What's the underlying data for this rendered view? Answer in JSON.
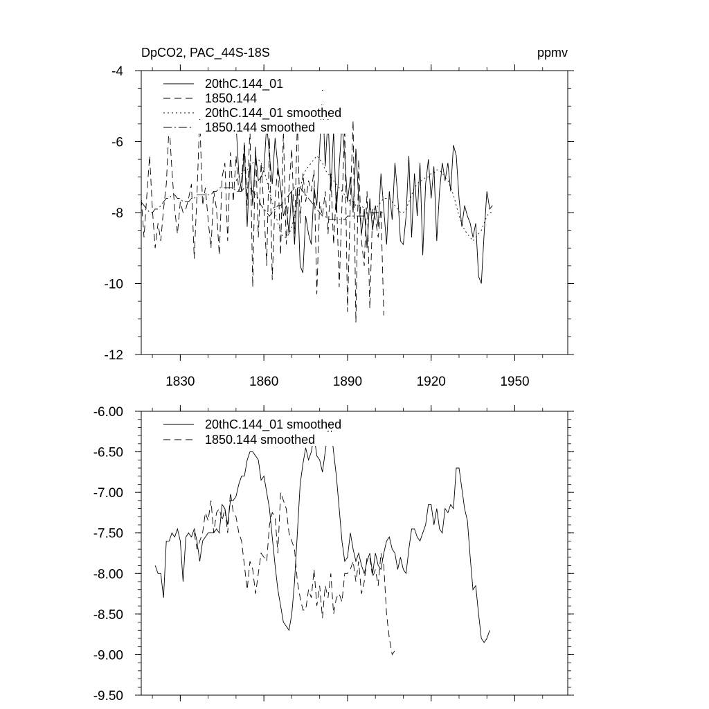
{
  "chart_data": [
    {
      "type": "line",
      "title": "DpCO2, PAC_44S-18S",
      "units_label": "ppmv",
      "xlabel": "",
      "ylabel": "",
      "xlim": [
        1816,
        1969
      ],
      "ylim": [
        -12,
        -4
      ],
      "x_ticks": [
        1830,
        1860,
        1890,
        1920,
        1950
      ],
      "y_ticks": [
        -4,
        -6,
        -8,
        -10,
        -12
      ],
      "y_tick_labels": [
        "-4",
        "-6",
        "-8",
        "-10",
        "-12"
      ],
      "legend_position": "top-left",
      "series": [
        {
          "name": "20thC.144_01",
          "style": "solid",
          "x_start": 1850,
          "values": [
            -5.5,
            -6.9,
            -7.4,
            -6.2,
            -8.4,
            -6.6,
            -7.8,
            -6.3,
            -7.1,
            -7.0,
            -6.8,
            -5.5,
            -6.4,
            -7.2,
            -5.9,
            -6.7,
            -7.3,
            -8.1,
            -7.8,
            -8.6,
            -7.4,
            -8.9,
            -7.3,
            -9.5,
            -9.7,
            -8.1,
            -8.6,
            -8.9,
            -7.3,
            -7.8,
            -6.2,
            -4.5,
            -6.7,
            -5.3,
            -7.4,
            -5.7,
            -8.0,
            -6.7,
            -5.5,
            -6.4,
            -7.7,
            -7.0,
            -8.0,
            -6.2,
            -7.6,
            -8.6,
            -7.9,
            -9.0,
            -7.6,
            -8.5,
            -7.8,
            -8.4,
            -6.9,
            -7.9,
            -8.9,
            -7.4,
            -8.2,
            -6.6,
            -7.5,
            -8.8,
            -8.9,
            -8.1,
            -6.4,
            -8.7,
            -6.9,
            -8.1,
            -6.6,
            -9.2,
            -7.2,
            -6.5,
            -7.6,
            -6.7,
            -8.8,
            -7.4,
            -6.6,
            -7.1,
            -6.6,
            -7.4,
            -6.1,
            -6.4,
            -7.6,
            -8.4,
            -7.8,
            -8.1,
            -8.3,
            -8.7,
            -8.3,
            -9.8,
            -10.0,
            -8.6,
            -7.4,
            -7.9,
            -7.8
          ]
        },
        {
          "name": "1850.144",
          "style": "dashed",
          "x_start": 1816,
          "values": [
            -7.6,
            -8.7,
            -7.5,
            -6.4,
            -7.9,
            -9.0,
            -8.3,
            -8.8,
            -7.9,
            -7.2,
            -5.5,
            -6.8,
            -7.9,
            -8.6,
            -7.7,
            -8.0,
            -7.9,
            -7.6,
            -7.2,
            -9.3,
            -7.5,
            -5.3,
            -7.8,
            -7.3,
            -8.2,
            -9.0,
            -7.4,
            -7.9,
            -9.2,
            -7.0,
            -6.6,
            -8.8,
            -6.3,
            -7.7,
            -6.4,
            -7.4,
            -7.1,
            -6.0,
            -7.8,
            -5.6,
            -10.1,
            -6.1,
            -8.7,
            -6.6,
            -7.9,
            -9.5,
            -5.9,
            -9.9,
            -7.6,
            -6.7,
            -9.2,
            -5.7,
            -8.9,
            -7.3,
            -6.2,
            -8.6,
            -5.4,
            -8.3,
            -6.9,
            -7.7,
            -7.1,
            -7.4,
            -6.8,
            -10.3,
            -7.7,
            -8.1,
            -7.4,
            -8.6,
            -6.9,
            -8.9,
            -7.4,
            -10.1,
            -7.8,
            -5.6,
            -10.8,
            -7.7,
            -5.4,
            -11.1,
            -6.5,
            -8.8,
            -9.5,
            -7.4,
            -10.7,
            -7.9,
            -8.2,
            -8.7,
            -7.9,
            -10.9
          ]
        },
        {
          "name": "20thC.144_01 smoothed",
          "style": "dotted",
          "x_start": 1850,
          "values": [
            -7.1,
            -7.0,
            -6.9,
            -6.8,
            -6.8,
            -6.7,
            -6.6,
            -6.5,
            -6.5,
            -6.6,
            -6.8,
            -7.1,
            -7.4,
            -7.7,
            -8.0,
            -8.3,
            -8.5,
            -8.7,
            -8.7,
            -8.6,
            -8.4,
            -8.1,
            -7.7,
            -7.3,
            -7.0,
            -6.8,
            -6.7,
            -6.6,
            -6.5,
            -6.4,
            -6.5,
            -6.6,
            -6.8,
            -6.9,
            -7.0,
            -7.1,
            -7.2,
            -7.3,
            -7.4,
            -7.5,
            -7.6,
            -7.7,
            -7.7,
            -7.8,
            -7.8,
            -7.8,
            -7.9,
            -7.9,
            -7.9,
            -7.9,
            -7.9,
            -7.8,
            -7.7,
            -7.6,
            -7.6,
            -7.6,
            -7.7,
            -7.8,
            -7.9,
            -8.0,
            -8.0,
            -7.9,
            -7.7,
            -7.5,
            -7.3,
            -7.2,
            -7.1,
            -7.1,
            -7.0,
            -7.0,
            -6.9,
            -6.9,
            -6.8,
            -6.8,
            -6.9,
            -7.0,
            -7.1,
            -7.3,
            -7.5,
            -7.8,
            -8.1,
            -8.3,
            -8.5,
            -8.6,
            -8.7,
            -8.8,
            -8.7,
            -8.6,
            -8.5,
            -8.3,
            -8.1,
            -8.0,
            -8.0
          ]
        },
        {
          "name": "1850.144 smoothed",
          "style": "dashdot",
          "x_start": 1816,
          "values": [
            -7.7,
            -7.8,
            -7.9,
            -8.0,
            -8.0,
            -7.9,
            -7.9,
            -7.8,
            -7.7,
            -7.6,
            -7.6,
            -7.5,
            -7.5,
            -7.6,
            -7.6,
            -7.7,
            -7.7,
            -7.7,
            -7.6,
            -7.6,
            -7.5,
            -7.5,
            -7.5,
            -7.5,
            -7.5,
            -7.5,
            -7.4,
            -7.4,
            -7.3,
            -7.3,
            -7.3,
            -7.3,
            -7.3,
            -7.3,
            -7.4,
            -7.4,
            -7.4,
            -7.3,
            -7.3,
            -7.3,
            -7.4,
            -7.5,
            -7.6,
            -7.8,
            -7.9,
            -8.0,
            -8.1,
            -8.0,
            -7.9,
            -7.8,
            -7.8,
            -7.7,
            -7.6,
            -7.5,
            -7.4,
            -7.3,
            -7.3,
            -7.3,
            -7.4,
            -7.5,
            -7.6,
            -7.7,
            -7.8,
            -7.9,
            -8.0,
            -8.1,
            -8.1,
            -8.2,
            -8.2,
            -8.2,
            -8.2,
            -8.2,
            -8.2,
            -8.2,
            -8.1,
            -8.1,
            -8.1,
            -8.1,
            -8.1,
            -8.1,
            -8.1,
            -8.0,
            -8.0,
            -8.0,
            -8.0,
            -8.0,
            -8.0,
            -8.0
          ]
        }
      ]
    },
    {
      "type": "line",
      "title": "",
      "xlabel": "",
      "ylabel": "",
      "xlim": [
        1816,
        1969
      ],
      "ylim": [
        -9.5,
        -6.0
      ],
      "x_ticks": [
        1830,
        1860,
        1890,
        1920,
        1950
      ],
      "y_ticks": [
        -6.0,
        -6.5,
        -7.0,
        -7.5,
        -8.0,
        -8.5,
        -9.0,
        -9.5
      ],
      "y_tick_labels": [
        "-6.00",
        "-6.50",
        "-7.00",
        "-7.50",
        "-8.00",
        "-8.50",
        "-9.00",
        "-9.50"
      ],
      "legend_position": "top-left",
      "series": [
        {
          "name": "20thC.144_01 smoothed",
          "style": "solid",
          "x_start": 1821,
          "values": [
            -7.9,
            -8.0,
            -8.0,
            -8.3,
            -7.6,
            -7.6,
            -7.5,
            -7.55,
            -7.45,
            -7.6,
            -8.1,
            -7.55,
            -7.5,
            -7.55,
            -7.45,
            -7.6,
            -7.85,
            -7.6,
            -7.55,
            -7.5,
            -7.5,
            -7.5,
            -7.45,
            -7.5,
            -7.15,
            -7.2,
            -7.4,
            -7.1,
            -7.1,
            -7.05,
            -6.9,
            -6.8,
            -6.8,
            -6.6,
            -6.5,
            -6.5,
            -6.55,
            -6.6,
            -6.85,
            -6.8,
            -7.0,
            -7.2,
            -7.55,
            -7.9,
            -8.2,
            -8.4,
            -8.6,
            -8.65,
            -8.7,
            -8.5,
            -8.1,
            -7.5,
            -6.9,
            -6.65,
            -6.45,
            -6.6,
            -6.5,
            -6.3,
            -6.55,
            -6.6,
            -6.75,
            -6.5,
            -6.25,
            -6.2,
            -6.5,
            -6.8,
            -7.2,
            -7.6,
            -7.85,
            -7.8,
            -7.5,
            -7.7,
            -7.85,
            -7.75,
            -7.9,
            -8.0,
            -7.85,
            -7.75,
            -8.0,
            -7.75,
            -7.9,
            -7.95,
            -7.75,
            -7.6,
            -7.55,
            -7.7,
            -7.75,
            -7.95,
            -7.8,
            -7.95,
            -8.0,
            -7.7,
            -7.45,
            -7.45,
            -7.55,
            -7.6,
            -7.5,
            -7.4,
            -7.15,
            -7.15,
            -7.4,
            -7.2,
            -7.45,
            -7.5,
            -7.2,
            -7.25,
            -7.15,
            -7.2,
            -6.7,
            -6.7,
            -6.95,
            -7.2,
            -7.35,
            -7.8,
            -8.2,
            -8.15,
            -8.5,
            -8.8,
            -8.85,
            -8.8,
            -8.7
          ]
        },
        {
          "name": "1850.144 smoothed",
          "style": "dashed",
          "x_start": 1835,
          "values": [
            -7.5,
            -7.7,
            -7.6,
            -7.5,
            -7.25,
            -7.35,
            -7.1,
            -7.5,
            -7.25,
            -7.2,
            -7.35,
            -7.2,
            -7.5,
            -7.0,
            -7.25,
            -7.3,
            -7.5,
            -7.6,
            -7.9,
            -8.2,
            -7.85,
            -7.95,
            -8.25,
            -8.0,
            -7.75,
            -7.8,
            -7.85,
            -7.4,
            -7.25,
            -7.3,
            -7.75,
            -7.0,
            -7.1,
            -7.2,
            -7.5,
            -7.6,
            -7.7,
            -8.1,
            -8.3,
            -8.45,
            -8.45,
            -8.2,
            -8.3,
            -7.95,
            -8.4,
            -8.15,
            -8.55,
            -8.15,
            -8.3,
            -8.0,
            -8.5,
            -8.3,
            -8.25,
            -8.35,
            -8.0,
            -8.0,
            -7.95,
            -7.85,
            -8.1,
            -7.85,
            -8.25,
            -8.1,
            -7.8,
            -7.8,
            -8.05,
            -7.95,
            -8.15,
            -7.75,
            -7.9,
            -8.5,
            -8.8,
            -9.0,
            -8.95
          ]
        }
      ]
    }
  ]
}
